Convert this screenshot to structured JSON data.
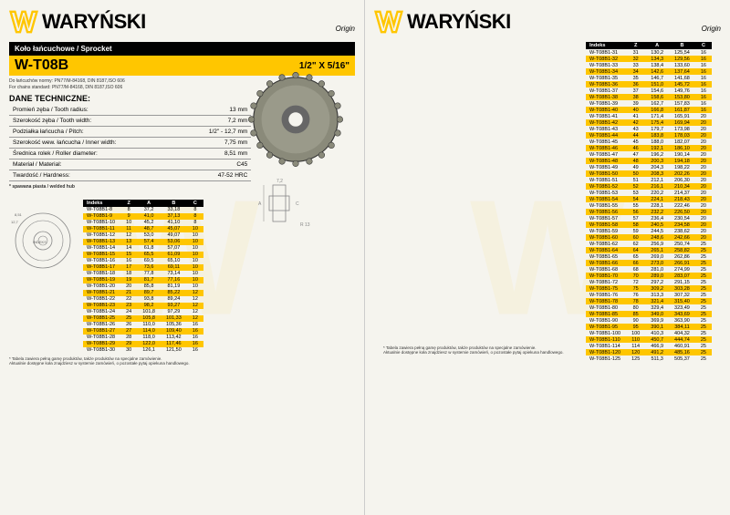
{
  "brand": "WARYŃSKI",
  "origin": "Origin",
  "product_title": "Koło łańcuchowe / Sprocket",
  "product_code": "W-T08B",
  "product_size": "1/2\" X 5/16\"",
  "chain_note_pl": "Do łańcuchów normy: PN77/M-84168, DIN 8187,ISO 606",
  "chain_note_en": "For chains standard: PN77/M-84168, DIN 8187,ISO 606",
  "specs_title": "DANE TECHNICZNE:",
  "specs": [
    {
      "k": "Promień zęba / Tooth radius:",
      "v": "13 mm"
    },
    {
      "k": "Szerokość zęba / Tooth width:",
      "v": "7,2 mm"
    },
    {
      "k": "Podziałka łańcucha / Pitch:",
      "v": "1/2\" - 12,7 mm"
    },
    {
      "k": "Szerokość wew. łańcucha / Inner width:",
      "v": "7,75 mm"
    },
    {
      "k": "Średnica rolek / Roller diameter:",
      "v": "8,51 mm"
    },
    {
      "k": "Materiał / Material:",
      "v": "C45"
    },
    {
      "k": "Twardość / Hardness:",
      "v": "47-52 HRC"
    }
  ],
  "hub_note": "* spawana piasta / welded hub",
  "headers": [
    "Indeks",
    "Z",
    "A",
    "B",
    "C"
  ],
  "left_rows": [
    [
      "W-T08B1-8",
      "8",
      "37,2",
      "33,18",
      "8"
    ],
    [
      "W-T08B1-9",
      "9",
      "41,0",
      "37,13",
      "8"
    ],
    [
      "W-T08B1-10",
      "10",
      "45,2",
      "41,10",
      "8"
    ],
    [
      "W-T08B1-11",
      "11",
      "48,7",
      "45,07",
      "10"
    ],
    [
      "W-T08B1-12",
      "12",
      "53,0",
      "49,07",
      "10"
    ],
    [
      "W-T08B1-13",
      "13",
      "57,4",
      "53,06",
      "10"
    ],
    [
      "W-T08B1-14",
      "14",
      "61,8",
      "57,07",
      "10"
    ],
    [
      "W-T08B1-15",
      "15",
      "65,5",
      "61,09",
      "10"
    ],
    [
      "W-T08B1-16",
      "16",
      "69,5",
      "65,10",
      "10"
    ],
    [
      "W-T08B1-17",
      "17",
      "73,6",
      "69,11",
      "10"
    ],
    [
      "W-T08B1-18",
      "18",
      "77,8",
      "73,14",
      "10"
    ],
    [
      "W-T08B1-19",
      "19",
      "81,7",
      "77,16",
      "10"
    ],
    [
      "W-T08B1-20",
      "20",
      "85,8",
      "81,19",
      "10"
    ],
    [
      "W-T08B1-21",
      "21",
      "89,7",
      "85,22",
      "12"
    ],
    [
      "W-T08B1-22",
      "22",
      "93,8",
      "89,24",
      "12"
    ],
    [
      "W-T08B1-23",
      "23",
      "98,2",
      "93,27",
      "12"
    ],
    [
      "W-T08B1-24",
      "24",
      "101,8",
      "97,29",
      "12"
    ],
    [
      "W-T08B1-25",
      "25",
      "105,8",
      "101,33",
      "12"
    ],
    [
      "W-T08B1-26",
      "26",
      "110,0",
      "105,36",
      "16"
    ],
    [
      "W-T08B1-27",
      "27",
      "114,0",
      "109,40",
      "16"
    ],
    [
      "W-T08B1-28",
      "28",
      "118,0",
      "113,42",
      "16"
    ],
    [
      "W-T08B1-29",
      "29",
      "122,0",
      "117,46",
      "16"
    ],
    [
      "W-T08B1-30",
      "30",
      "126,1",
      "121,50",
      "16"
    ]
  ],
  "right_rows": [
    [
      "W-T08B1-31",
      "31",
      "130,2",
      "125,54",
      "16"
    ],
    [
      "W-T08B1-32",
      "32",
      "134,3",
      "129,56",
      "16"
    ],
    [
      "W-T08B1-33",
      "33",
      "138,4",
      "133,60",
      "16"
    ],
    [
      "W-T08B1-34",
      "34",
      "142,6",
      "137,64",
      "16"
    ],
    [
      "W-T08B1-35",
      "35",
      "146,7",
      "141,68",
      "16"
    ],
    [
      "W-T08B1-36",
      "36",
      "151,0",
      "145,72",
      "16"
    ],
    [
      "W-T08B1-37",
      "37",
      "154,6",
      "149,76",
      "16"
    ],
    [
      "W-T08B1-38",
      "38",
      "158,6",
      "153,80",
      "16"
    ],
    [
      "W-T08B1-39",
      "39",
      "162,7",
      "157,83",
      "16"
    ],
    [
      "W-T08B1-40",
      "40",
      "166,8",
      "161,87",
      "16"
    ],
    [
      "W-T08B1-41",
      "41",
      "171,4",
      "165,91",
      "20"
    ],
    [
      "W-T08B1-42",
      "42",
      "175,4",
      "169,94",
      "20"
    ],
    [
      "W-T08B1-43",
      "43",
      "179,7",
      "173,98",
      "20"
    ],
    [
      "W-T08B1-44",
      "44",
      "183,8",
      "178,03",
      "20"
    ],
    [
      "W-T08B1-45",
      "45",
      "188,0",
      "182,07",
      "20"
    ],
    [
      "W-T08B1-46",
      "46",
      "192,1",
      "186,10",
      "20"
    ],
    [
      "W-T08B1-47",
      "47",
      "196,2",
      "190,14",
      "20"
    ],
    [
      "W-T08B1-48",
      "48",
      "200,3",
      "194,18",
      "20"
    ],
    [
      "W-T08B1-49",
      "49",
      "204,3",
      "198,22",
      "20"
    ],
    [
      "W-T08B1-50",
      "50",
      "208,3",
      "202,26",
      "20"
    ],
    [
      "W-T08B1-51",
      "51",
      "212,1",
      "206,30",
      "20"
    ],
    [
      "W-T08B1-52",
      "52",
      "216,1",
      "210,34",
      "20"
    ],
    [
      "W-T08B1-53",
      "53",
      "220,2",
      "214,37",
      "20"
    ],
    [
      "W-T08B1-54",
      "54",
      "224,1",
      "218,43",
      "20"
    ],
    [
      "W-T08B1-55",
      "55",
      "228,1",
      "222,46",
      "20"
    ],
    [
      "W-T08B1-56",
      "56",
      "232,2",
      "226,50",
      "20"
    ],
    [
      "W-T08B1-57",
      "57",
      "236,4",
      "230,54",
      "20"
    ],
    [
      "W-T08B1-58",
      "58",
      "240,5",
      "234,58",
      "20"
    ],
    [
      "W-T08B1-59",
      "59",
      "244,5",
      "238,62",
      "20"
    ],
    [
      "W-T08B1-60",
      "60",
      "248,6",
      "242,66",
      "20"
    ],
    [
      "W-T08B1-62",
      "62",
      "256,9",
      "250,74",
      "25"
    ],
    [
      "W-T08B1-64",
      "64",
      "265,1",
      "258,82",
      "25"
    ],
    [
      "W-T08B1-65",
      "65",
      "269,0",
      "262,86",
      "25"
    ],
    [
      "W-T08B1-66",
      "66",
      "273,0",
      "266,91",
      "25"
    ],
    [
      "W-T08B1-68",
      "68",
      "281,0",
      "274,99",
      "25"
    ],
    [
      "W-T08B1-70",
      "70",
      "289,0",
      "283,07",
      "25"
    ],
    [
      "W-T08B1-72",
      "72",
      "297,2",
      "291,15",
      "25"
    ],
    [
      "W-T08B1-75",
      "75",
      "309,2",
      "303,28",
      "25"
    ],
    [
      "W-T08B1-76",
      "76",
      "313,3",
      "307,32",
      "25"
    ],
    [
      "W-T08B1-78",
      "78",
      "321,4",
      "315,40",
      "25"
    ],
    [
      "W-T08B1-80",
      "80",
      "329,4",
      "323,49",
      "25"
    ],
    [
      "W-T08B1-85",
      "85",
      "349,0",
      "343,69",
      "25"
    ],
    [
      "W-T08B1-90",
      "90",
      "369,9",
      "363,90",
      "25"
    ],
    [
      "W-T08B1-95",
      "95",
      "390,1",
      "384,11",
      "25"
    ],
    [
      "W-T08B1-100",
      "100",
      "410,3",
      "404,32",
      "25"
    ],
    [
      "W-T08B1-110",
      "110",
      "450,7",
      "444,74",
      "25"
    ],
    [
      "W-T08B1-114",
      "114",
      "466,9",
      "460,91",
      "25"
    ],
    [
      "W-T08B1-120",
      "120",
      "491,2",
      "485,16",
      "25"
    ],
    [
      "W-T08B1-125",
      "125",
      "511,3",
      "505,37",
      "25"
    ]
  ],
  "footnote_pl": "* Tabela zawiera pełną gamę produktów, także produktów na specjalne zamówienie.",
  "footnote_en": "Aktualnie dostępne koła znajdziesz w systemie zamówień, o pozostałe pytaj opiekuna handlowego.",
  "colors": {
    "accent": "#ffc600",
    "bg": "#f5f4ee"
  }
}
